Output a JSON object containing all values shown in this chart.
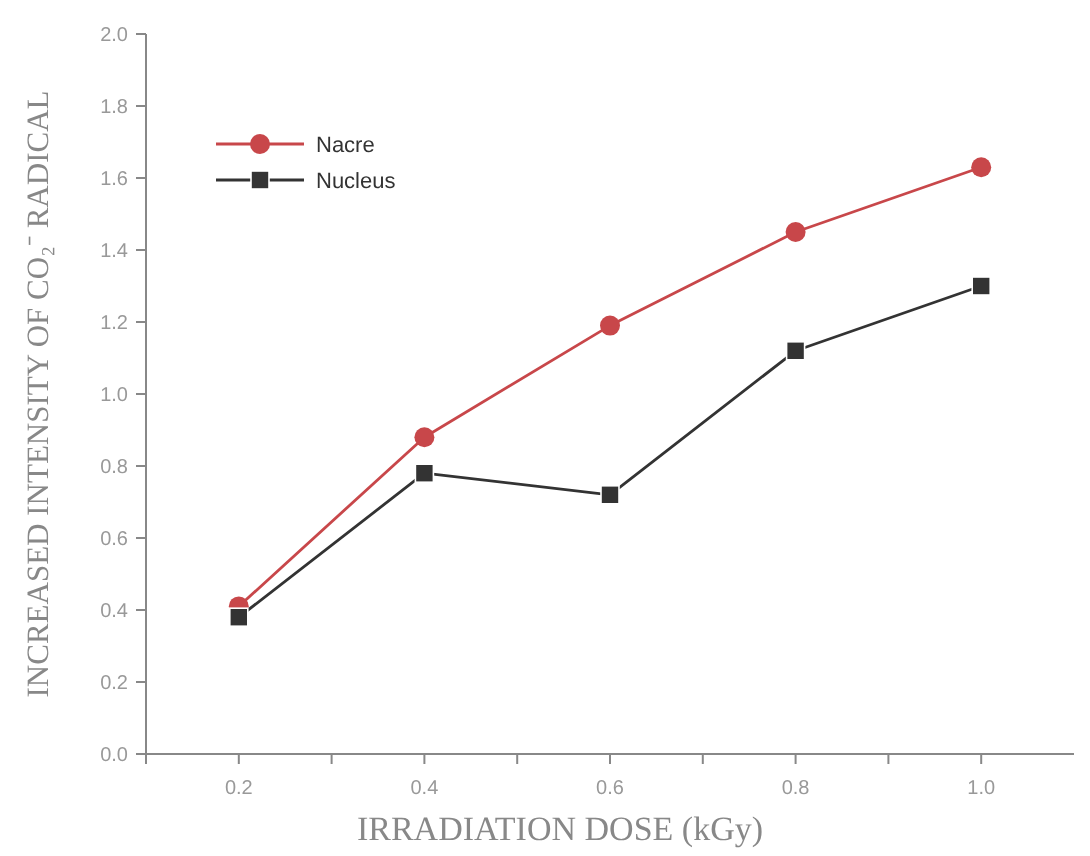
{
  "chart_data": {
    "type": "line",
    "xlabel": "IRRADIATION DOSE (kGy)",
    "ylabel": "INCREASED INTENSITY OF CO₂⁻ RADICAL",
    "x": [
      0.2,
      0.4,
      0.6,
      0.8,
      1.0
    ],
    "series": [
      {
        "name": "Nacre",
        "color": "#c8474a",
        "values": [
          0.41,
          0.88,
          1.19,
          1.45,
          1.63
        ],
        "marker": "circle"
      },
      {
        "name": "Nucleus",
        "color": "#333333",
        "values": [
          0.38,
          0.78,
          0.72,
          1.12,
          1.3
        ],
        "marker": "square"
      }
    ],
    "xlim": [
      0.1,
      1.1
    ],
    "xticks": [
      {
        "value": 0.1,
        "label": null
      },
      {
        "value": 0.2,
        "label": "0.2"
      },
      {
        "value": 0.3,
        "label": null
      },
      {
        "value": 0.4,
        "label": "0.4"
      },
      {
        "value": 0.5,
        "label": null
      },
      {
        "value": 0.6,
        "label": "0.6"
      },
      {
        "value": 0.7,
        "label": null
      },
      {
        "value": 0.8,
        "label": "0.8"
      },
      {
        "value": 0.9,
        "label": null
      },
      {
        "value": 1.0,
        "label": "1.0"
      }
    ],
    "ylim": [
      0,
      2
    ],
    "yticks": [
      {
        "value": 0,
        "label": "0.0"
      },
      {
        "value": 0.2,
        "label": "0.2"
      },
      {
        "value": 0.4,
        "label": "0.4"
      },
      {
        "value": 0.6,
        "label": "0.6"
      },
      {
        "value": 0.8,
        "label": "0.8"
      },
      {
        "value": 1.0,
        "label": "1.0"
      },
      {
        "value": 1.2,
        "label": "1.2"
      },
      {
        "value": 1.4,
        "label": "1.4"
      },
      {
        "value": 1.6,
        "label": "1.6"
      },
      {
        "value": 1.8,
        "label": "1.8"
      },
      {
        "value": 2.0,
        "label": "2.0"
      }
    ],
    "grid": false,
    "legend": "top left",
    "line_style": "solid"
  }
}
